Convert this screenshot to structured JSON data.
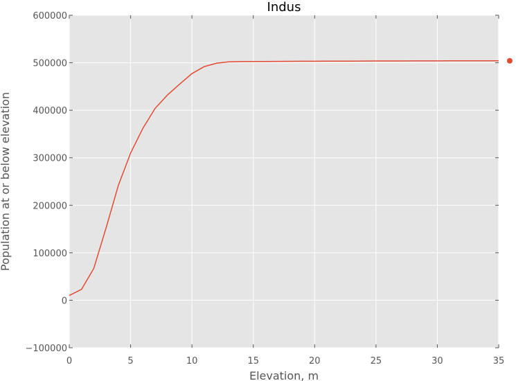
{
  "chart_data": {
    "type": "line",
    "title": "Indus",
    "xlabel": "Elevation, m",
    "ylabel": "Population at or below elevation",
    "xlim": [
      0,
      35
    ],
    "ylim": [
      -100000,
      600000
    ],
    "xticks": [
      "0",
      "5",
      "10",
      "15",
      "20",
      "25",
      "30",
      "35"
    ],
    "yticks": [
      "−100000",
      "0",
      "100000",
      "200000",
      "300000",
      "400000",
      "500000",
      "600000"
    ],
    "grid": true,
    "colors": {
      "background": "#e5e5e5",
      "grid": "#ffffff",
      "line": "#e24a33"
    },
    "series": [
      {
        "x": [
          0,
          1,
          2,
          3,
          4,
          5,
          6,
          7,
          8,
          9,
          10,
          11,
          12,
          13,
          14,
          15,
          16,
          17,
          18,
          19,
          20,
          21,
          22,
          23,
          24,
          25,
          26,
          27,
          28,
          29,
          30,
          31,
          32,
          33,
          34,
          35
        ],
        "y": [
          10000,
          23000,
          67000,
          152000,
          242000,
          310000,
          362000,
          404000,
          432000,
          455000,
          477000,
          492000,
          499000,
          502000,
          502500,
          502700,
          502800,
          502900,
          503000,
          503100,
          503200,
          503300,
          503400,
          503500,
          503600,
          503700,
          503750,
          503800,
          503850,
          503900,
          503950,
          504000,
          504000,
          504050,
          504050,
          504100
        ]
      }
    ],
    "markers": [
      {
        "x": 35.9,
        "y": 504100
      }
    ]
  }
}
